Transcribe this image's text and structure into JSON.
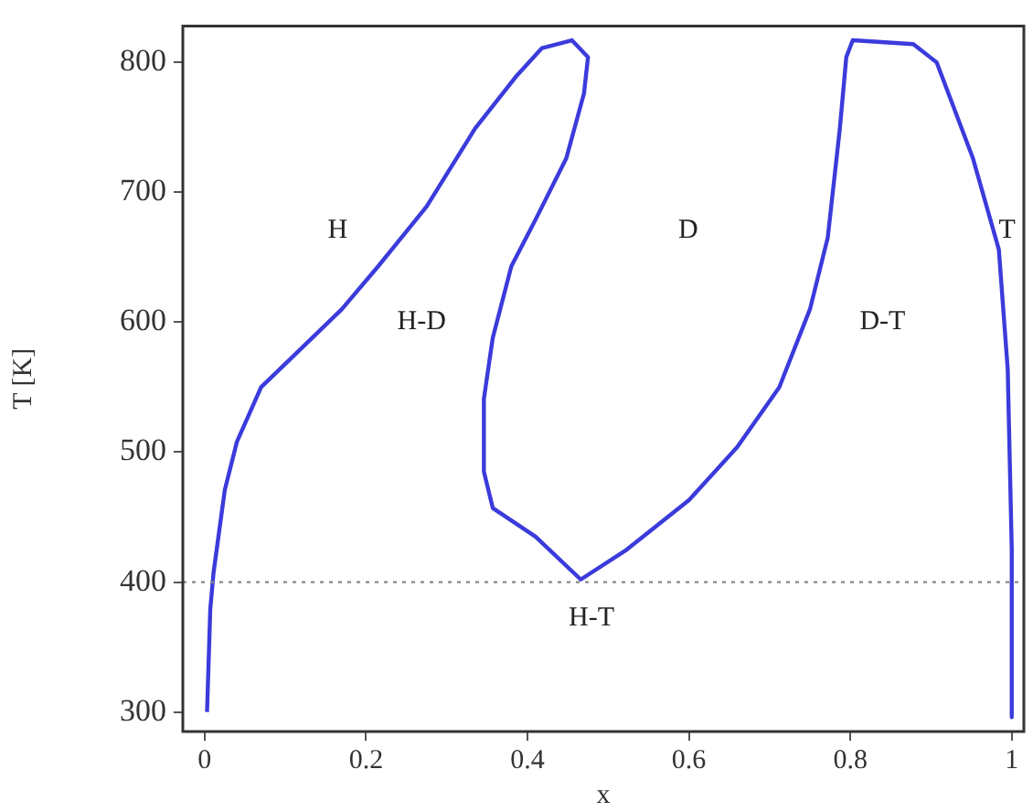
{
  "chart_data": {
    "type": "line",
    "xlabel": "x",
    "ylabel": "T [K]",
    "xlim": [
      -0.027,
      1.015
    ],
    "ylim": [
      285,
      828
    ],
    "xticks": [
      0,
      0.2,
      0.4,
      0.6,
      0.8,
      1
    ],
    "yticks": [
      300,
      400,
      500,
      600,
      700,
      800
    ],
    "grid": false,
    "legend": false,
    "marker": "none",
    "line_style": "solid",
    "series": [
      {
        "color": "#3b3bdc",
        "x": [
          0.003,
          0.007,
          0.011,
          0.025,
          0.04,
          0.07,
          0.11,
          0.17,
          0.215,
          0.275,
          0.335,
          0.387,
          0.418,
          0.455,
          0.475,
          0.47,
          0.448,
          0.41,
          0.38,
          0.357,
          0.346,
          0.346,
          0.357,
          0.41,
          0.466,
          0.523,
          0.6,
          0.66,
          0.712,
          0.75,
          0.772,
          0.787,
          0.795,
          0.803,
          0.878,
          0.907,
          0.952,
          0.984,
          0.995,
          1.0,
          1.0
        ],
        "values": [
          300,
          379,
          407,
          471,
          508,
          550,
          574,
          610,
          643,
          689,
          749,
          790,
          811,
          817,
          804,
          776,
          726,
          679,
          643,
          588,
          541,
          485,
          457,
          435,
          402,
          425,
          463,
          504,
          550,
          610,
          665,
          749,
          804,
          817,
          814,
          800,
          726,
          656,
          564,
          425,
          296
        ]
      }
    ],
    "ref_lines": [
      {
        "axis": "y",
        "value": 400,
        "color": "#888888",
        "line_style": "dotted"
      }
    ],
    "annotations": [
      "H",
      "H-D",
      "D",
      "D-T",
      "T",
      "H-T"
    ]
  }
}
